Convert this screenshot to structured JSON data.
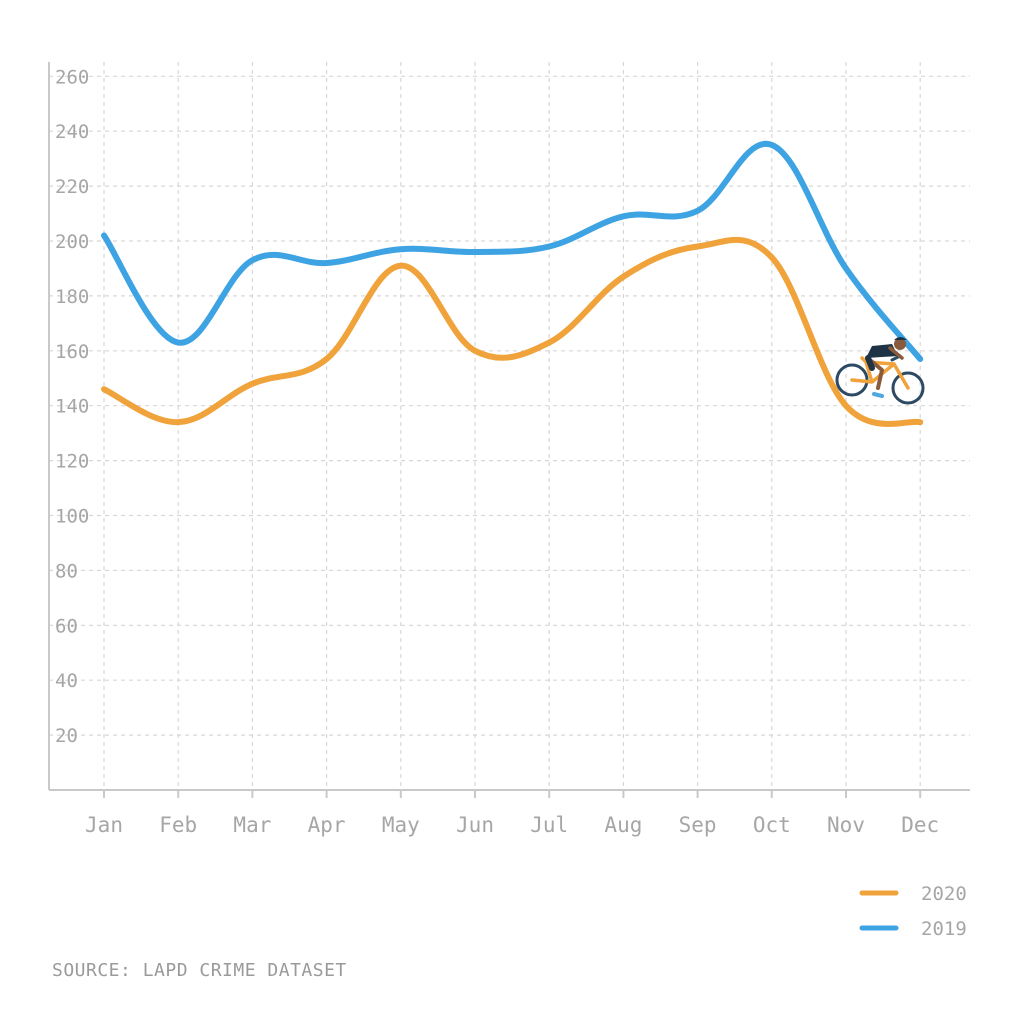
{
  "chart_data": {
    "type": "line",
    "categories": [
      "Jan",
      "Feb",
      "Mar",
      "Apr",
      "May",
      "Jun",
      "Jul",
      "Aug",
      "Sep",
      "Oct",
      "Nov",
      "Dec"
    ],
    "series": [
      {
        "name": "2020",
        "color": "#f0a23b",
        "values": [
          146,
          134,
          148,
          157,
          191,
          160,
          163,
          187,
          198,
          194,
          140,
          134
        ]
      },
      {
        "name": "2019",
        "color": "#3ea3e3",
        "values": [
          202,
          163,
          193,
          192,
          197,
          196,
          198,
          209,
          211,
          235,
          190,
          157
        ]
      }
    ],
    "yticks": [
      20,
      40,
      60,
      80,
      100,
      120,
      140,
      160,
      180,
      200,
      220,
      240,
      260
    ],
    "ylim": [
      0,
      265
    ],
    "grid": true,
    "legend_position": "bottom-right",
    "source": "SOURCE: LAPD CRIME DATASET",
    "annotation_icon": "cyclist-icon"
  }
}
